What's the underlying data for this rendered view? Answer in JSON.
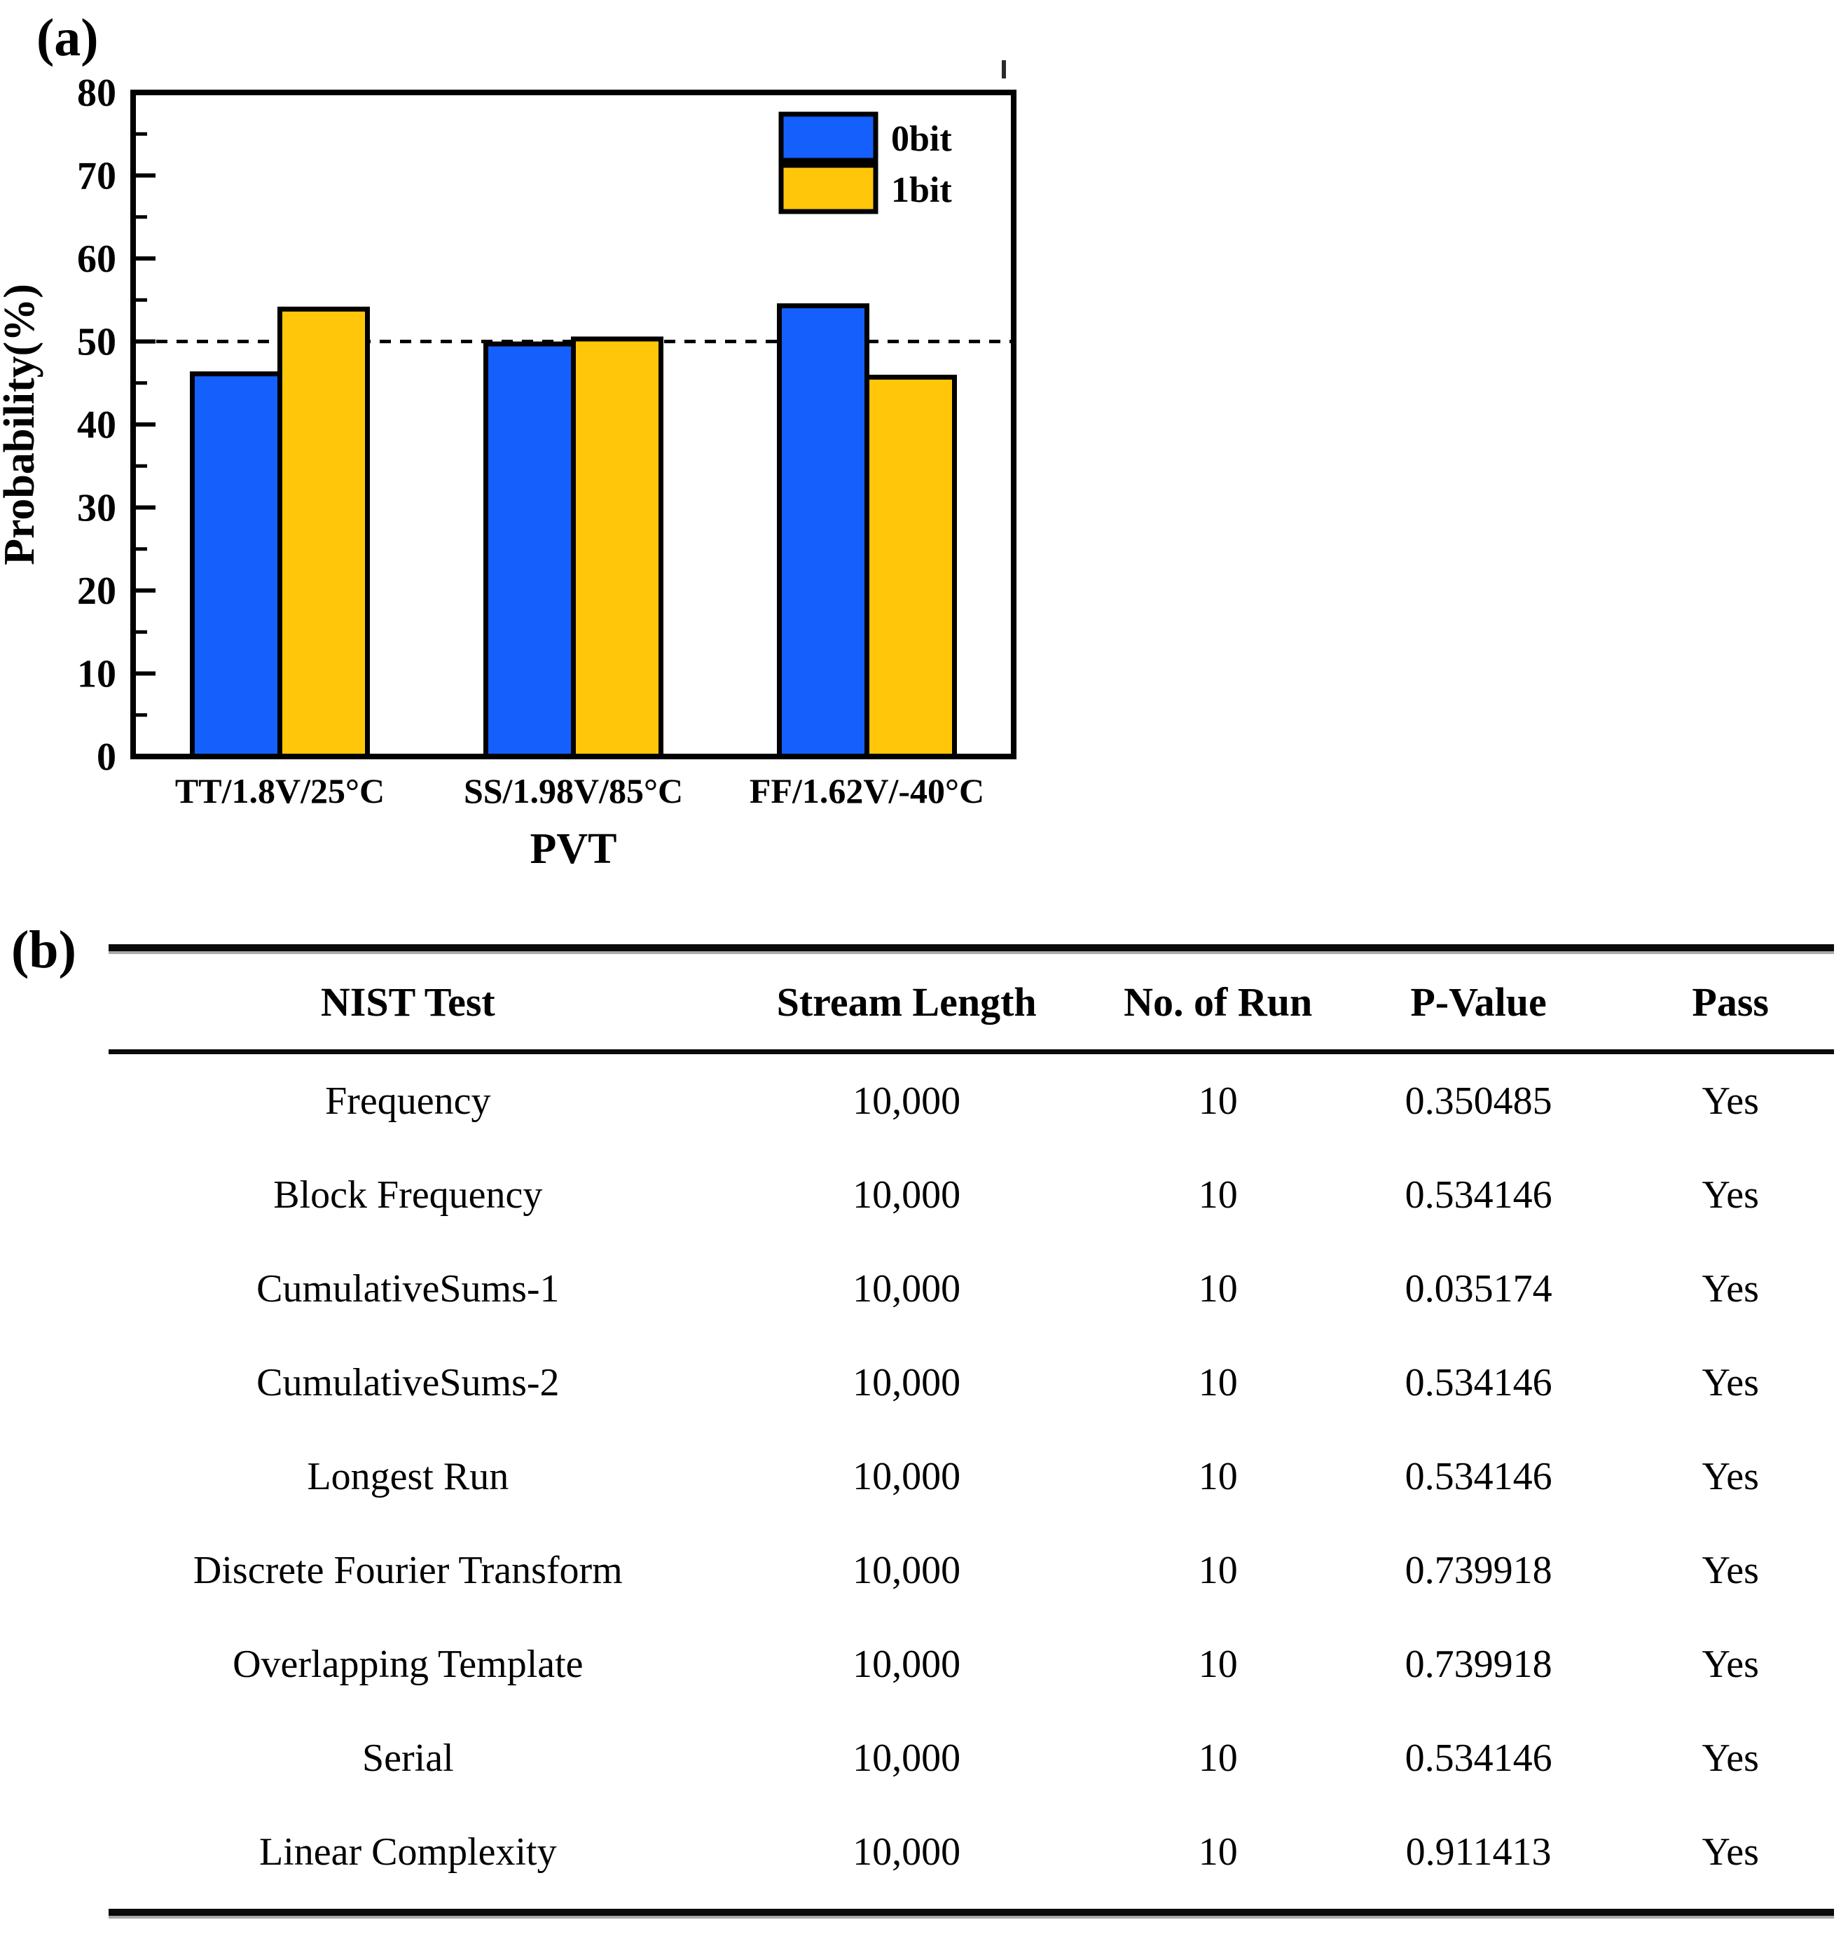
{
  "figure": {
    "panel_a_label": "(a)",
    "panel_b_label": "(b)"
  },
  "chart_data": {
    "type": "bar",
    "title": "",
    "xlabel": "PVT",
    "ylabel": "Probability(%)",
    "ylim": [
      0,
      80
    ],
    "ytick_step": 10,
    "minor_tick_step": 5,
    "reference_line_y": 50,
    "grid": false,
    "legend_position": "top-right-inside",
    "categories": [
      "TT/1.8V/25°C",
      "SS/1.98V/85°C",
      "FF/1.62V/-40°C"
    ],
    "series": [
      {
        "name": "0bit",
        "color": "#1560FC",
        "values": [
          46.1,
          49.7,
          54.3
        ]
      },
      {
        "name": "1bit",
        "color": "#FFC60A",
        "values": [
          53.9,
          50.3,
          45.7
        ]
      }
    ]
  },
  "table": {
    "headers": [
      "NIST Test",
      "Stream Length",
      "No. of Run",
      "P-Value",
      "Pass"
    ],
    "rows": [
      [
        "Frequency",
        "10,000",
        "10",
        "0.350485",
        "Yes"
      ],
      [
        "Block Frequency",
        "10,000",
        "10",
        "0.534146",
        "Yes"
      ],
      [
        "CumulativeSums-1",
        "10,000",
        "10",
        "0.035174",
        "Yes"
      ],
      [
        "CumulativeSums-2",
        "10,000",
        "10",
        "0.534146",
        "Yes"
      ],
      [
        "Longest Run",
        "10,000",
        "10",
        "0.534146",
        "Yes"
      ],
      [
        "Discrete Fourier Transform",
        "10,000",
        "10",
        "0.739918",
        "Yes"
      ],
      [
        "Overlapping Template",
        "10,000",
        "10",
        "0.739918",
        "Yes"
      ],
      [
        "Serial",
        "10,000",
        "10",
        "0.534146",
        "Yes"
      ],
      [
        "Linear Complexity",
        "10,000",
        "10",
        "0.911413",
        "Yes"
      ]
    ]
  },
  "colors": {
    "bar_0bit": "#1560FC",
    "bar_1bit": "#FFC60A",
    "axis": "#000000",
    "background": "#FFFFFF"
  }
}
